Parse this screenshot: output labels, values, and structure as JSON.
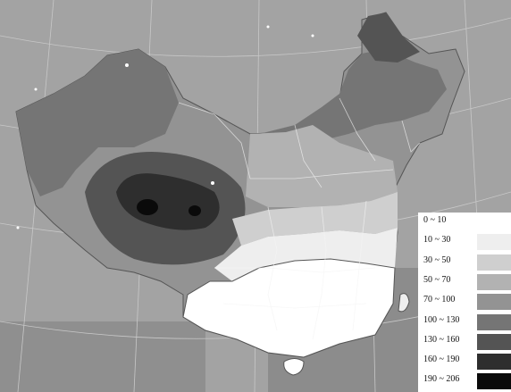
{
  "legend": {
    "items": [
      {
        "label": "0 ~ 10",
        "color": "#ffffff"
      },
      {
        "label": "10 ~ 30",
        "color": "#eeeeee"
      },
      {
        "label": "30 ~ 50",
        "color": "#cfcfcf"
      },
      {
        "label": "50 ~ 70",
        "color": "#b2b2b2"
      },
      {
        "label": "70 ~ 100",
        "color": "#939393"
      },
      {
        "label": "100 ~ 130",
        "color": "#757575"
      },
      {
        "label": "130 ~ 160",
        "color": "#545454"
      },
      {
        "label": "160 ~ 190",
        "color": "#2e2e2e"
      },
      {
        "label": "190 ~ 206",
        "color": "#0a0a0a"
      }
    ]
  }
}
